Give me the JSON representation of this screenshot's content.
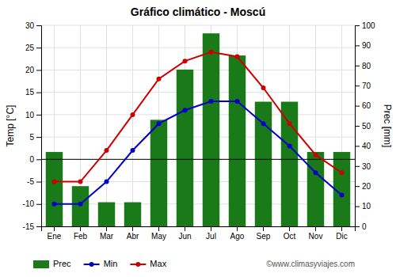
{
  "chart_data": {
    "type": "bar",
    "title": "Gráfico climático - Moscú",
    "categories": [
      "Ene",
      "Feb",
      "Mar",
      "Abr",
      "May",
      "Jun",
      "Jul",
      "Ago",
      "Sep",
      "Oct",
      "Nov",
      "Dic"
    ],
    "series": [
      {
        "name": "Prec",
        "type": "bar",
        "axis": "y2",
        "color": "#1a7a1a",
        "values": [
          37,
          20,
          12,
          12,
          53,
          78,
          96,
          85,
          62,
          62,
          37,
          37
        ]
      },
      {
        "name": "Min",
        "type": "line",
        "marker": "circle",
        "color": "#0000cc",
        "values": [
          -10,
          -10,
          -5,
          2,
          8,
          11,
          13,
          13,
          8,
          3,
          -3,
          -8
        ]
      },
      {
        "name": "Max",
        "type": "line",
        "marker": "circle",
        "color": "#cc0000",
        "values": [
          -5,
          -5,
          2,
          10,
          18,
          22,
          24,
          23,
          16,
          8,
          1,
          -3
        ]
      }
    ],
    "y_label": "Temp [°C]",
    "y2_label": "Prec [mm]",
    "ylim": [
      -15,
      30
    ],
    "yticks": [
      -15,
      -10,
      -5,
      0,
      5,
      10,
      15,
      20,
      25,
      30
    ],
    "y2lim": [
      0,
      100
    ],
    "y2ticks": [
      0,
      10,
      20,
      30,
      40,
      50,
      60,
      70,
      80,
      90,
      100
    ],
    "grid": true,
    "legend": "bottom",
    "annotations": [
      "©www.climasyviajes.com"
    ]
  }
}
